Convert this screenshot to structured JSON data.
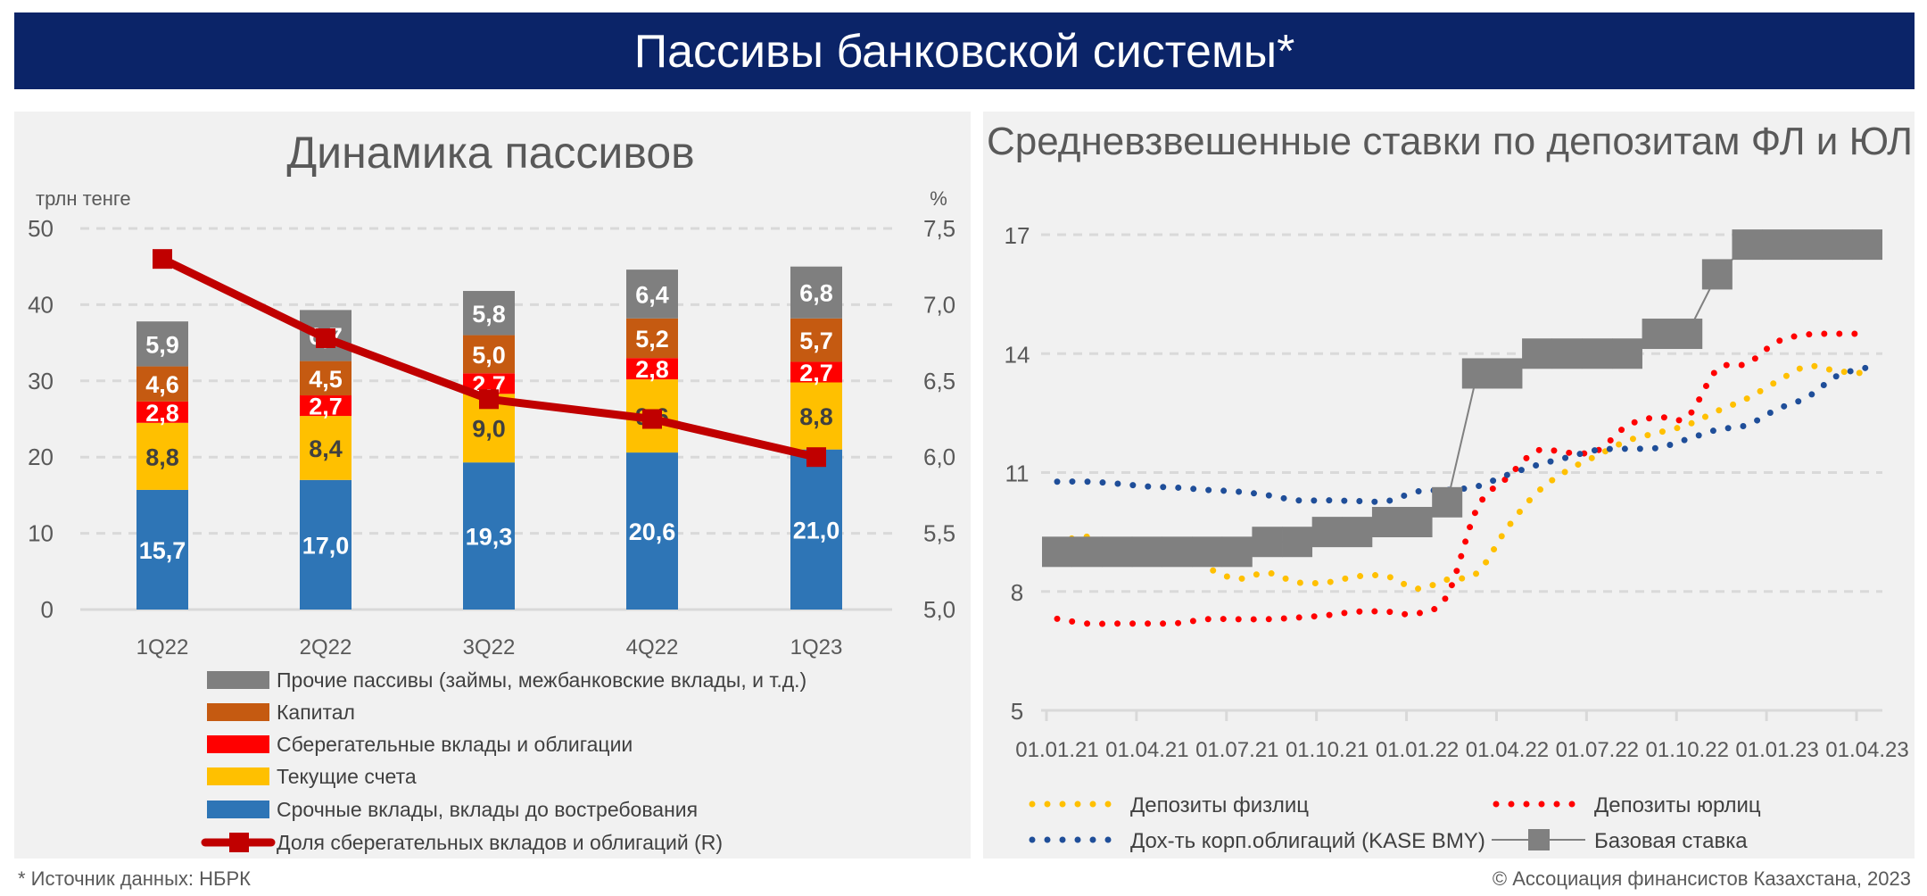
{
  "header": {
    "title": "Пассивы банковской системы*"
  },
  "footer": {
    "source": "* Источник данных: НБРК",
    "copyright": "© Ассоциация финансистов Казахстана, 2023"
  },
  "colors": {
    "banner": "#0b2468",
    "panel": "#f1f1f1",
    "term": "#2e75b6",
    "current": "#ffc000",
    "savings": "#ff0000",
    "capital": "#c55a11",
    "other": "#7f7f7f",
    "share_line": "#c00000",
    "base_rate": "#808080",
    "retail": "#ffc000",
    "corporate": "#ff0000",
    "bonds": "#1f4e99"
  },
  "chart_data": [
    {
      "type": "bar",
      "stacked": true,
      "title": "Динамика пассивов",
      "ylabel": "трлн тенге",
      "y2label": "%",
      "ylim": [
        0,
        50
      ],
      "yticks": [
        "0",
        "10",
        "20",
        "30",
        "40",
        "50"
      ],
      "y2lim": [
        5.0,
        7.5
      ],
      "y2ticks": [
        "5,0",
        "5,5",
        "6,0",
        "6,5",
        "7,0",
        "7,5"
      ],
      "grid": true,
      "legend": "bottom",
      "categories": [
        "1Q22",
        "2Q22",
        "3Q22",
        "4Q22",
        "1Q23"
      ],
      "series": [
        {
          "name": "Срочные вклады, вклады до востребования",
          "color_key": "term",
          "values": [
            15.7,
            17.0,
            19.3,
            20.6,
            21.0
          ],
          "labels": [
            "15,7",
            "17,0",
            "19,3",
            "20,6",
            "21,0"
          ]
        },
        {
          "name": "Текущие счета",
          "color_key": "current",
          "values": [
            8.8,
            8.4,
            9.0,
            9.6,
            8.8
          ],
          "labels": [
            "8,8",
            "8,4",
            "9,0",
            "9,6",
            "8,8"
          ]
        },
        {
          "name": "Сберегательные вклады и облигации",
          "color_key": "savings",
          "values": [
            2.8,
            2.7,
            2.7,
            2.8,
            2.7
          ],
          "labels": [
            "2,8",
            "2,7",
            "2,7",
            "2,8",
            "2,7"
          ]
        },
        {
          "name": "Капитал",
          "color_key": "capital",
          "values": [
            4.6,
            4.5,
            5.0,
            5.2,
            5.7
          ],
          "labels": [
            "4,6",
            "4,5",
            "5,0",
            "5,2",
            "5,7"
          ]
        },
        {
          "name": "Прочие пассивы (займы, межбанковские вклады, и т.д.)",
          "color_key": "other",
          "values": [
            5.9,
            6.7,
            5.8,
            6.4,
            6.8
          ],
          "labels": [
            "5,9",
            "6,7",
            "5,8",
            "6,4",
            "6,8"
          ]
        }
      ],
      "line_series": {
        "name": "Доля сберегательных вкладов и облигаций (R)",
        "axis": "right",
        "values": [
          7.3,
          6.78,
          6.38,
          6.25,
          6.0
        ]
      }
    },
    {
      "type": "line",
      "title": "Средневзвешенные ставки по депозитам ФЛ и ЮЛ",
      "ylim": [
        5,
        17
      ],
      "yticks": [
        "5",
        "8",
        "11",
        "14",
        "17"
      ],
      "xticks": [
        "01.01.21",
        "01.04.21",
        "01.07.21",
        "01.10.21",
        "01.01.22",
        "01.04.22",
        "01.07.22",
        "01.10.22",
        "01.01.23",
        "01.04.23"
      ],
      "x_frequency": "monthly, 01.01.21 – 01.04.23",
      "grid": true,
      "legend": "bottom",
      "series": [
        {
          "name": "Депозиты физлиц",
          "color_key": "retail",
          "style": "dotted",
          "values": [
            9.23,
            9.38,
            9.04,
            9.2,
            9.04,
            8.6,
            8.32,
            8.47,
            8.23,
            8.23,
            8.38,
            8.38,
            8.07,
            8.3,
            8.47,
            9.6,
            10.5,
            11.05,
            11.43,
            11.8,
            12.0,
            12.2,
            12.55,
            12.87,
            13.3,
            13.68,
            13.56,
            13.5
          ]
        },
        {
          "name": "Депозиты юрлиц",
          "color_key": "corporate",
          "style": "dotted",
          "values": [
            7.31,
            7.19,
            7.19,
            7.19,
            7.2,
            7.3,
            7.3,
            7.3,
            7.34,
            7.4,
            7.49,
            7.49,
            7.44,
            7.9,
            10.1,
            10.87,
            11.55,
            11.5,
            11.55,
            12.18,
            12.4,
            12.4,
            13.6,
            13.75,
            14.3,
            14.48,
            14.5,
            14.5
          ]
        },
        {
          "name": "Дох-ть корп.облигаций (KASE BMY)",
          "color_key": "bonds",
          "style": "dotted",
          "values": [
            10.77,
            10.77,
            10.72,
            10.65,
            10.62,
            10.56,
            10.52,
            10.43,
            10.3,
            10.3,
            10.28,
            10.28,
            10.52,
            10.56,
            10.65,
            10.94,
            11.19,
            11.38,
            11.57,
            11.6,
            11.62,
            11.84,
            12.08,
            12.2,
            12.6,
            12.9,
            13.44,
            13.65
          ]
        },
        {
          "name": "Базовая ставка",
          "color_key": "base_rate",
          "style": "line-square",
          "values": [
            9,
            9,
            9,
            9,
            9,
            9,
            9,
            9.25,
            9.25,
            9.5,
            9.5,
            9.75,
            9.75,
            10.25,
            13.5,
            13.5,
            14,
            14,
            14,
            14,
            14.5,
            14.5,
            16,
            16.75,
            16.75,
            16.75,
            16.75,
            16.75
          ]
        }
      ]
    }
  ]
}
